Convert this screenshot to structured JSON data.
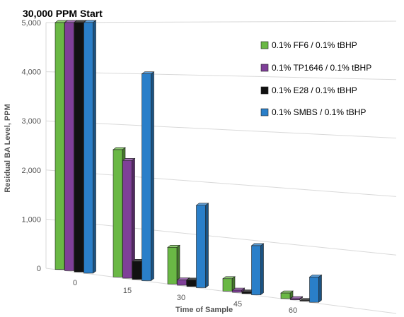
{
  "chart_data": {
    "type": "bar",
    "title": "30,000 PPM Start",
    "xlabel": "Time of Sample",
    "ylabel": "Residual BA Level, PPM",
    "categories": [
      "0",
      "15",
      "30",
      "45",
      "60"
    ],
    "ylim": [
      0,
      5000
    ],
    "yticks": [
      "0",
      "1,000",
      "2,000",
      "3,000",
      "4,000",
      "5,000"
    ],
    "grid": true,
    "legend_position": "right",
    "series": [
      {
        "name": "0.1% FF6 / 0.1% tBHP",
        "color": "#6ab845",
        "values": [
          5000,
          2500,
          700,
          230,
          100
        ]
      },
      {
        "name": "0.1% TP1646 / 0.1% tBHP",
        "color": "#7f3f98",
        "values": [
          5000,
          2300,
          100,
          40,
          20
        ]
      },
      {
        "name": "0.1% E28 / 0.1% tBHP",
        "color": "#111111",
        "values": [
          5000,
          350,
          120,
          30,
          10
        ]
      },
      {
        "name": "0.1% SMBS / 0.1% tBHP",
        "color": "#2a7fc9",
        "values": [
          5000,
          4000,
          1550,
          900,
          450
        ]
      }
    ]
  }
}
